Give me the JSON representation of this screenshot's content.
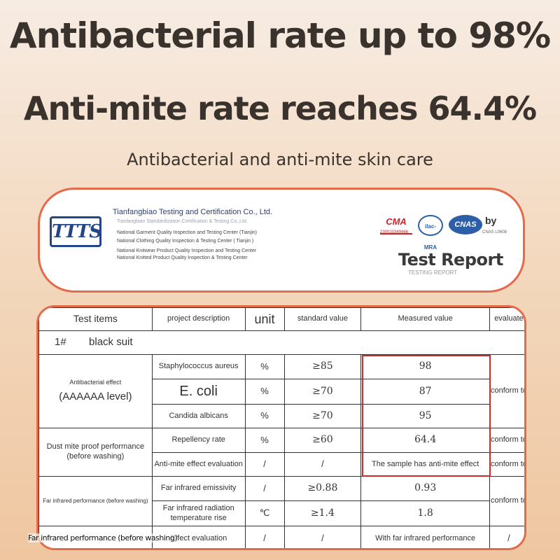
{
  "headline1": "Antibacterial rate up to 98%",
  "headline2": "Anti-mite rate reaches 64.4%",
  "subheading": "Antibacterial and anti-mite skin care",
  "report": {
    "logo_text": "TTTS",
    "org_name": "Tianfangbiao Testing and Certification Co., Ltd.",
    "org_lines": [
      "Tianfangbiao Standardization Certification & Testing Co.,Ltd.",
      "National Garment Quality Inspection and Testing Center (Tianjin)",
      "National Clothing Quality Inspection & Testing Center ( Tianjin )",
      "National Knitwear Product Quality Inspection and Testing Center",
      "National Knitted Product Quality Inspection & Testing Center"
    ],
    "badges": {
      "cma": "CMA",
      "cma_number": "230020349466",
      "ilac": "ilac-MRA",
      "cnas": "CNAS",
      "by": "by",
      "cnas_number": "CNAS L0608"
    },
    "title": "Test Report",
    "subtitle": "TESTING REPORT"
  },
  "table": {
    "headers": [
      "Test items",
      "project description",
      "unit",
      "standard value",
      "Measured value",
      "evaluate"
    ],
    "sample": {
      "number": "1#",
      "name": "black suit"
    },
    "groups": {
      "antibacterial": {
        "label": "Antibacterial effect",
        "level": "(AAAAAA level)",
        "evaluate": "conform to"
      },
      "dust_mite": {
        "label": "Dust mite proof performance",
        "note": "(before washing)",
        "evaluate1": "conform to",
        "evaluate2": "conform to"
      },
      "far_infrared": {
        "label": "Far infrared performance (before washing)",
        "evaluate": "conform to"
      }
    },
    "rows": [
      {
        "description": "Staphylococcus aureus",
        "unit": "%",
        "standard": "≥85",
        "measured": "98"
      },
      {
        "description": "E. coli",
        "unit": "%",
        "standard": "≥70",
        "measured": "87"
      },
      {
        "description": "Candida albicans",
        "unit": "%",
        "standard": "≥70",
        "measured": "95"
      },
      {
        "description": "Repellency rate",
        "unit": "%",
        "standard": "≥60",
        "measured": "64.4"
      },
      {
        "description": "Anti-mite effect evaluation",
        "unit": "/",
        "standard": "/",
        "measured": "The sample has anti-mite effect"
      },
      {
        "description": "Far infrared emissivity",
        "unit": "/",
        "standard": "≥0.88",
        "measured": "0.93"
      },
      {
        "description": "Far infrared radiation temperature rise",
        "unit": "℃",
        "standard": "≥1.4",
        "measured": "1.8"
      },
      {
        "description": "Effect evaluation",
        "unit": "/",
        "standard": "/",
        "measured": "With far infrared performance",
        "evaluate": "/"
      }
    ],
    "last_row_label": "Far infrared performance (before washing)"
  },
  "colors": {
    "accent_border": "#e36a4a",
    "highlight_box": "#cc2b2b",
    "logo_blue": "#23468a"
  }
}
